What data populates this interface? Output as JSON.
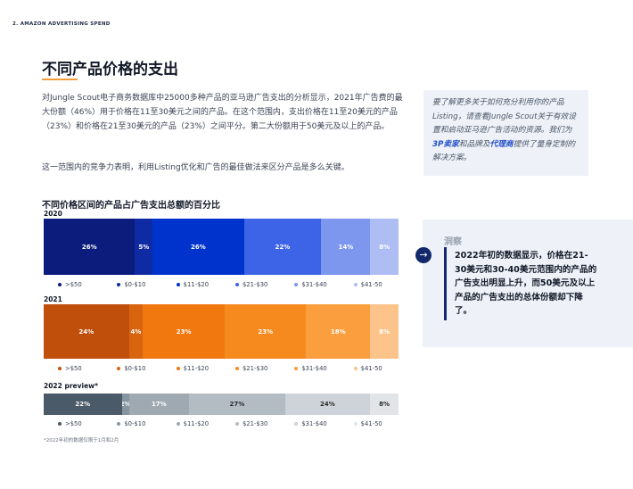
{
  "section_label": "2.  AMAZON ADVERTISING SPEND",
  "page_title": "不同产品价格的支出",
  "paragraph1": "对Jungle Scout电子商务数据库中25000多种产品的亚马逊广告支出的分析显示，2021年广告费的最大份额（46%）用于价格在11至30美元之间的产品。在这个范围内，支出价格在11至20美元的产品（23%）和价格在21至30美元的产品（23%）之间平分。第二大份额用于50美元及以上的产品。",
  "paragraph2": "这一范围内的竞争力表明，利用Listing优化和广告的最佳做法来区分产品是多么关键。",
  "callout": {
    "before": "要了解更多关于如何充分利用你的产品Listing，请查看Jungle Scout关于有效设置和启动亚马逊广告活动的资源。我们为",
    "link1": "3P卖家",
    "middle": "和品牌及",
    "link2": "代理商",
    "after": "提供了量身定制的解决方案。"
  },
  "insight": {
    "heading": "洞察",
    "icon": "arrow-right-circle-icon",
    "text": "2022年初的数据显示，价格在21-30美元和30-40美元范围内的产品的广告支出明显上升，而50美元及以上产品的广告支出的总体份额却下降了。"
  },
  "chart_data": {
    "type": "bar",
    "orientation": "horizontal-stacked-100",
    "title": "不同价格区间的产品占广告支出总额的百分比",
    "categories": [
      ">$50",
      "$0-$10",
      "$11-$20",
      "$21-$30",
      "$31-$40",
      "$41-50"
    ],
    "groups": [
      {
        "label": "2020",
        "values": [
          26,
          5,
          26,
          22,
          14,
          8
        ],
        "labels": [
          "26%",
          "5%",
          "26%",
          "22%",
          "14%",
          "8%"
        ],
        "colors": [
          "#0b1c7d",
          "#0f2ba3",
          "#0033cc",
          "#3d63e6",
          "#7d97ef",
          "#aebdf3"
        ]
      },
      {
        "label": "2021",
        "values": [
          24,
          4,
          23,
          23,
          18,
          8
        ],
        "labels": [
          "24%",
          "4%",
          "23%",
          "23%",
          "18%",
          "8%"
        ],
        "colors": [
          "#c04f0c",
          "#d8640f",
          "#f0780f",
          "#f78a1e",
          "#fb9e3d",
          "#fcc48a"
        ]
      },
      {
        "label": "2022 preview*",
        "values": [
          22,
          2,
          17,
          27,
          24,
          8
        ],
        "labels": [
          "22%",
          "2%",
          "17%",
          "27%",
          "24%",
          "8%"
        ],
        "colors": [
          "#4b5a68",
          "#8795a0",
          "#9ea9b1",
          "#b3bcc3",
          "#cdd3d8",
          "#e1e5e8"
        ]
      }
    ]
  },
  "footnote": "*2022年初的数据仅限于1月和2月"
}
